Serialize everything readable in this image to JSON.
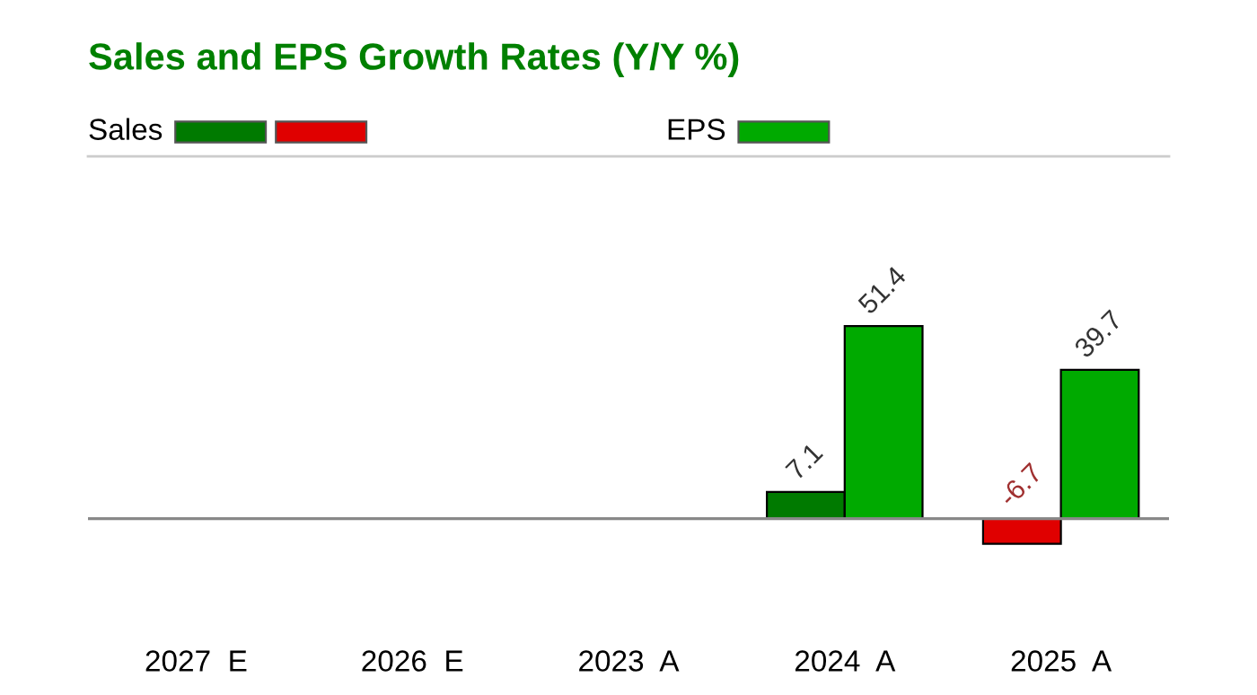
{
  "chart_data": {
    "type": "bar",
    "title": "Sales and EPS Growth Rates (Y/Y %)",
    "categories": [
      "2027  E",
      "2026  E",
      "2023  A",
      "2024  A",
      "2025  A"
    ],
    "series": [
      {
        "name": "Sales",
        "color": "#007a00",
        "colors": [
          null,
          null,
          null,
          "#007a00",
          "#e00000"
        ],
        "values": [
          null,
          null,
          null,
          7.1,
          -6.7
        ]
      },
      {
        "name": "EPS",
        "color": "#00aa00",
        "values": [
          null,
          null,
          null,
          51.4,
          39.7
        ]
      }
    ],
    "data_labels": true,
    "legend": "top left",
    "grid": false
  }
}
